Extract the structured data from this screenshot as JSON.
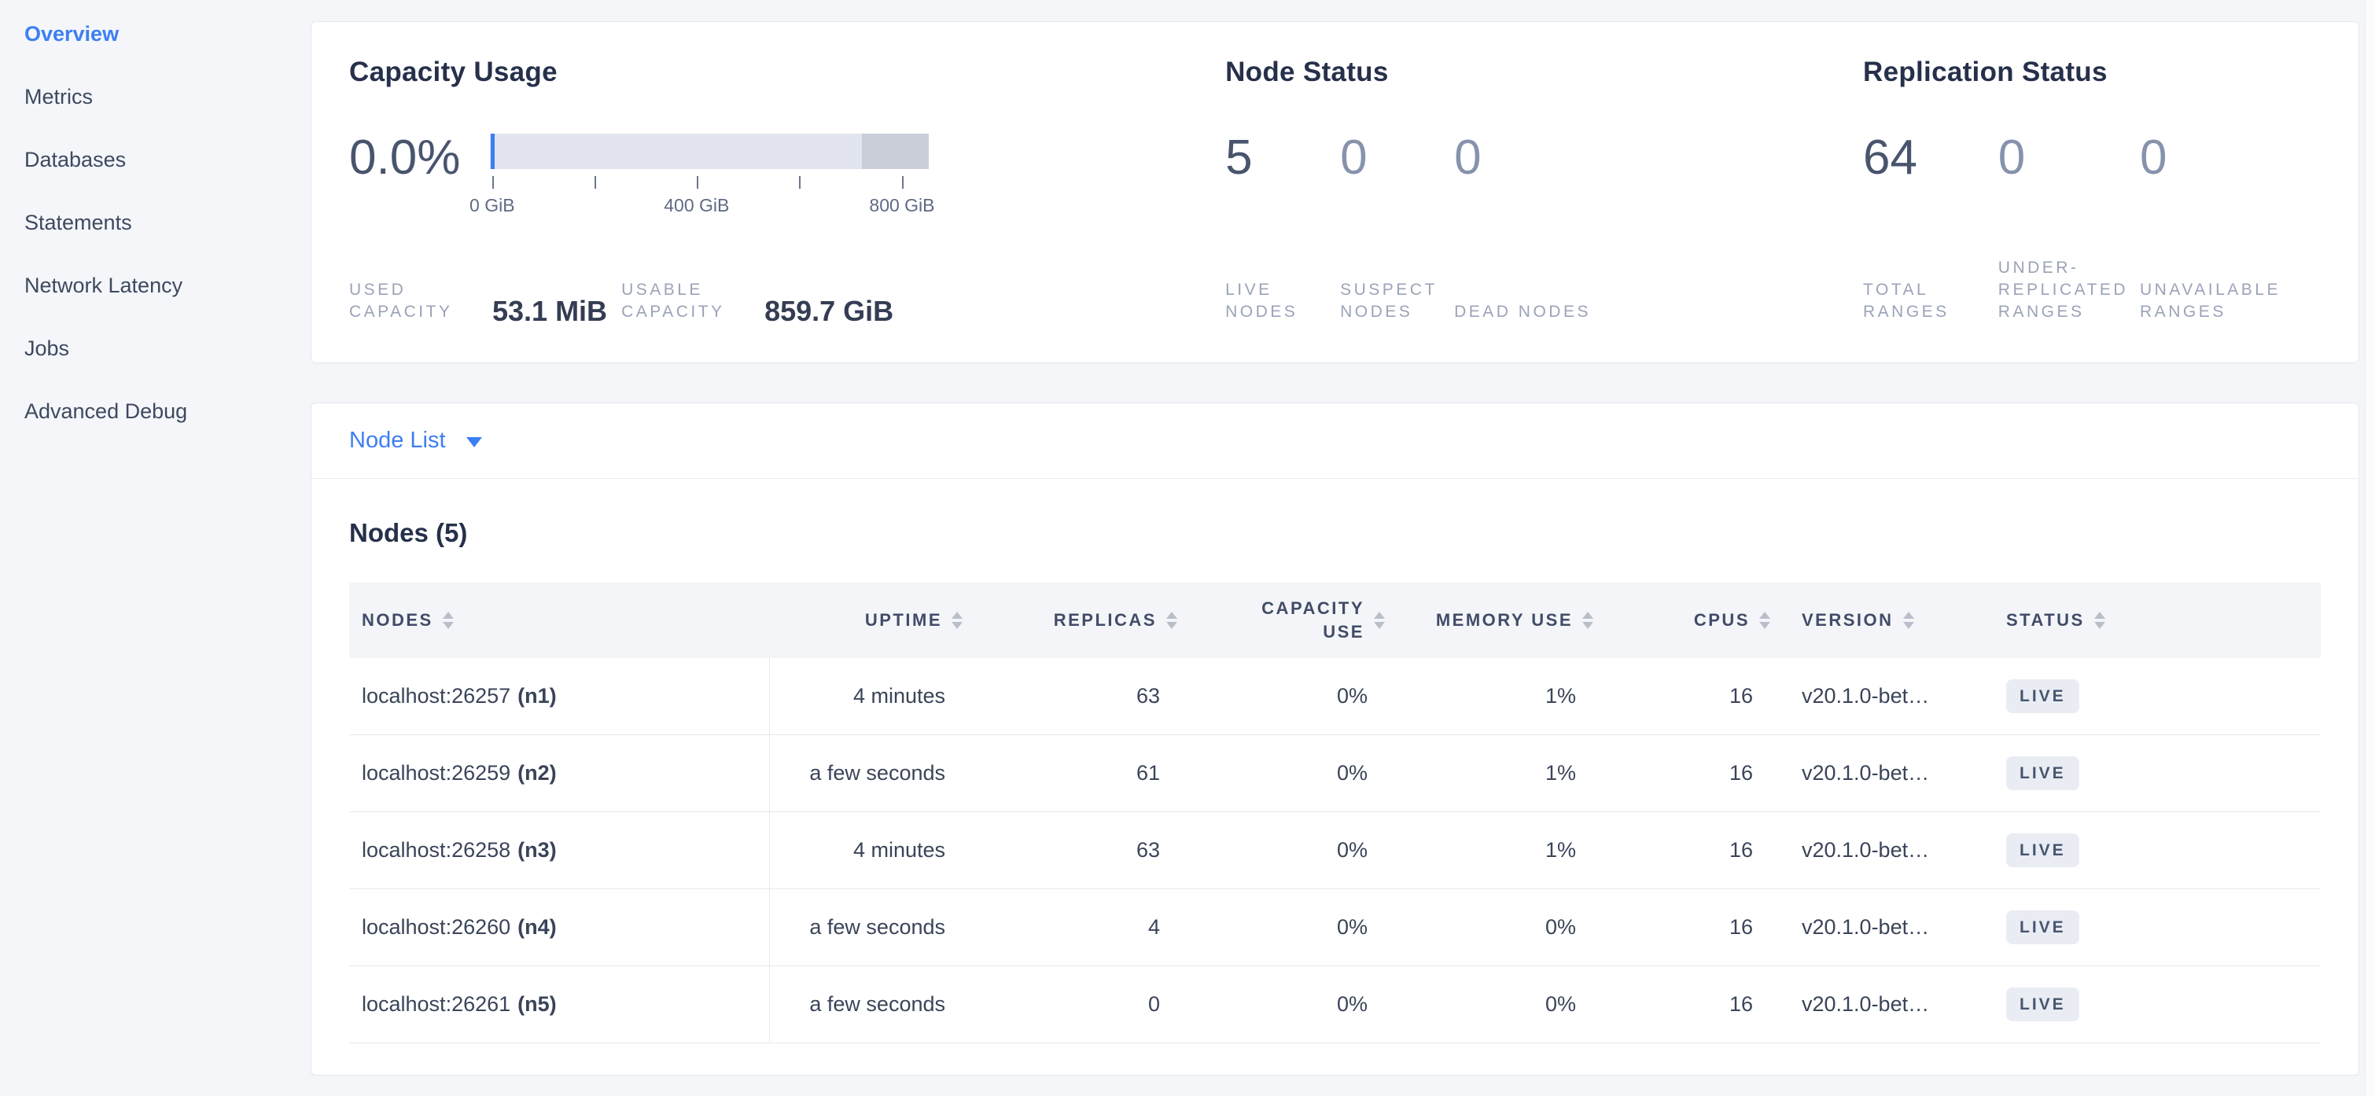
{
  "sidebar": {
    "items": [
      {
        "label": "Overview",
        "active": true
      },
      {
        "label": "Metrics"
      },
      {
        "label": "Databases"
      },
      {
        "label": "Statements"
      },
      {
        "label": "Network Latency"
      },
      {
        "label": "Jobs"
      },
      {
        "label": "Advanced Debug"
      }
    ]
  },
  "capacity": {
    "title": "Capacity Usage",
    "percent": "0.0%",
    "ticks": [
      "0 GiB",
      "400 GiB",
      "800 GiB"
    ],
    "used": {
      "label": "USED CAPACITY",
      "value": "53.1 MiB"
    },
    "usable": {
      "label": "USABLE CAPACITY",
      "value": "859.7 GiB"
    }
  },
  "node_status": {
    "title": "Node Status",
    "stats": [
      {
        "value": "5",
        "label": "LIVE NODES"
      },
      {
        "value": "0",
        "label": "SUSPECT NODES"
      },
      {
        "value": "0",
        "label": "DEAD NODES"
      }
    ]
  },
  "replication": {
    "title": "Replication Status",
    "stats": [
      {
        "value": "64",
        "label": "TOTAL RANGES"
      },
      {
        "value": "0",
        "label": "UNDER-REPLICATED RANGES"
      },
      {
        "value": "0",
        "label": "UNAVAILABLE RANGES"
      }
    ]
  },
  "node_list": {
    "selector_label": "Node List",
    "table_title": "Nodes (5)",
    "columns": [
      "NODES",
      "UPTIME",
      "REPLICAS",
      "CAPACITY USE",
      "MEMORY USE",
      "CPUS",
      "VERSION",
      "STATUS"
    ],
    "rows": [
      {
        "address": "localhost:26257",
        "id": "(n1)",
        "uptime": "4 minutes",
        "replicas": "63",
        "capacity_use": "0%",
        "memory_use": "1%",
        "cpus": "16",
        "version": "v20.1.0-bet…",
        "status": "LIVE"
      },
      {
        "address": "localhost:26259",
        "id": "(n2)",
        "uptime": "a few seconds",
        "replicas": "61",
        "capacity_use": "0%",
        "memory_use": "1%",
        "cpus": "16",
        "version": "v20.1.0-bet…",
        "status": "LIVE"
      },
      {
        "address": "localhost:26258",
        "id": "(n3)",
        "uptime": "4 minutes",
        "replicas": "63",
        "capacity_use": "0%",
        "memory_use": "1%",
        "cpus": "16",
        "version": "v20.1.0-bet…",
        "status": "LIVE"
      },
      {
        "address": "localhost:26260",
        "id": "(n4)",
        "uptime": "a few seconds",
        "replicas": "4",
        "capacity_use": "0%",
        "memory_use": "0%",
        "cpus": "16",
        "version": "v20.1.0-bet…",
        "status": "LIVE"
      },
      {
        "address": "localhost:26261",
        "id": "(n5)",
        "uptime": "a few seconds",
        "replicas": "0",
        "capacity_use": "0%",
        "memory_use": "0%",
        "cpus": "16",
        "version": "v20.1.0-bet…",
        "status": "LIVE"
      }
    ]
  },
  "colors": {
    "accent_blue": "#3d7ef2",
    "live_badge_bg": "#e9ecf3",
    "live_badge_text": "#47566f",
    "gauge_track": "#e2e5ed",
    "gauge_reserved": "#c9ced9",
    "gauge_used": "#3d7ef2"
  }
}
